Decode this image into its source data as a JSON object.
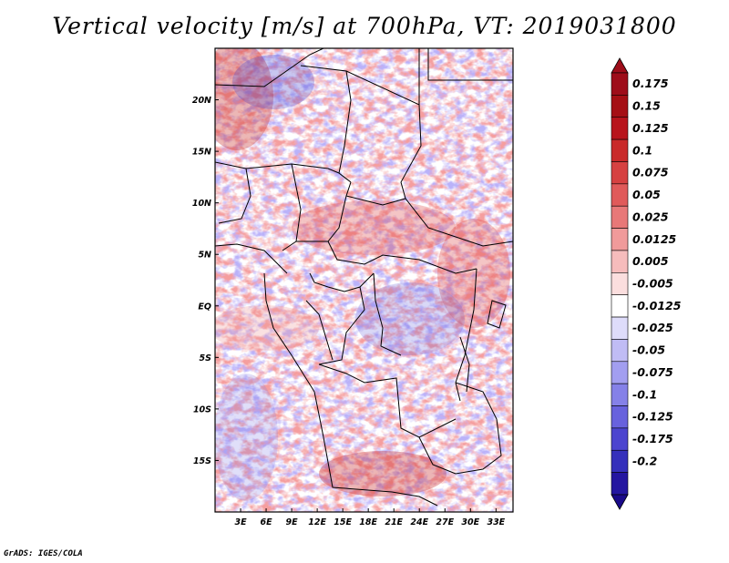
{
  "title": "Vertical velocity [m/s] at 700hPa, VT: 2019031800",
  "credit": "GrADS: IGES/COLA",
  "map": {
    "lon_range": [
      0,
      35
    ],
    "lat_range": [
      -20,
      25
    ],
    "lat_ticks": [
      {
        "label": "20N",
        "lat": 20
      },
      {
        "label": "15N",
        "lat": 15
      },
      {
        "label": "10N",
        "lat": 10
      },
      {
        "label": "5N",
        "lat": 5
      },
      {
        "label": "EQ",
        "lat": 0
      },
      {
        "label": "5S",
        "lat": -5
      },
      {
        "label": "10S",
        "lat": -10
      },
      {
        "label": "15S",
        "lat": -15
      }
    ],
    "lon_ticks": [
      {
        "label": "3E",
        "lon": 3
      },
      {
        "label": "6E",
        "lon": 6
      },
      {
        "label": "9E",
        "lon": 9
      },
      {
        "label": "12E",
        "lon": 12
      },
      {
        "label": "15E",
        "lon": 15
      },
      {
        "label": "18E",
        "lon": 18
      },
      {
        "label": "21E",
        "lon": 21
      },
      {
        "label": "24E",
        "lon": 24
      },
      {
        "label": "27E",
        "lon": 27
      },
      {
        "label": "30E",
        "lon": 30
      },
      {
        "label": "33E",
        "lon": 33
      }
    ]
  },
  "colorbar": {
    "levels": [
      {
        "label": "0.175",
        "color": "#a50f15"
      },
      {
        "label": "0.15",
        "color": "#b8141c"
      },
      {
        "label": "0.125",
        "color": "#c92a2a"
      },
      {
        "label": "0.1",
        "color": "#d64141"
      },
      {
        "label": "0.075",
        "color": "#e05a5a"
      },
      {
        "label": "0.05",
        "color": "#e87878"
      },
      {
        "label": "0.025",
        "color": "#f09a9a"
      },
      {
        "label": "0.0125",
        "color": "#f6bcbc"
      },
      {
        "label": "0.005",
        "color": "#fbdede"
      },
      {
        "label": "-0.005",
        "color": "#ffffff"
      },
      {
        "label": "-0.0125",
        "color": "#dedcfa"
      },
      {
        "label": "-0.025",
        "color": "#c0bcf5"
      },
      {
        "label": "-0.05",
        "color": "#a29ef0"
      },
      {
        "label": "-0.075",
        "color": "#8581e8"
      },
      {
        "label": "-0.1",
        "color": "#6862dd"
      },
      {
        "label": "-0.125",
        "color": "#4c45cf"
      },
      {
        "label": "-0.175",
        "color": "#3530bb"
      },
      {
        "label": "-0.2",
        "color": "#2416a0"
      }
    ],
    "top_color": "#9e0d1a",
    "bottom_color": "#1a0a8a"
  }
}
